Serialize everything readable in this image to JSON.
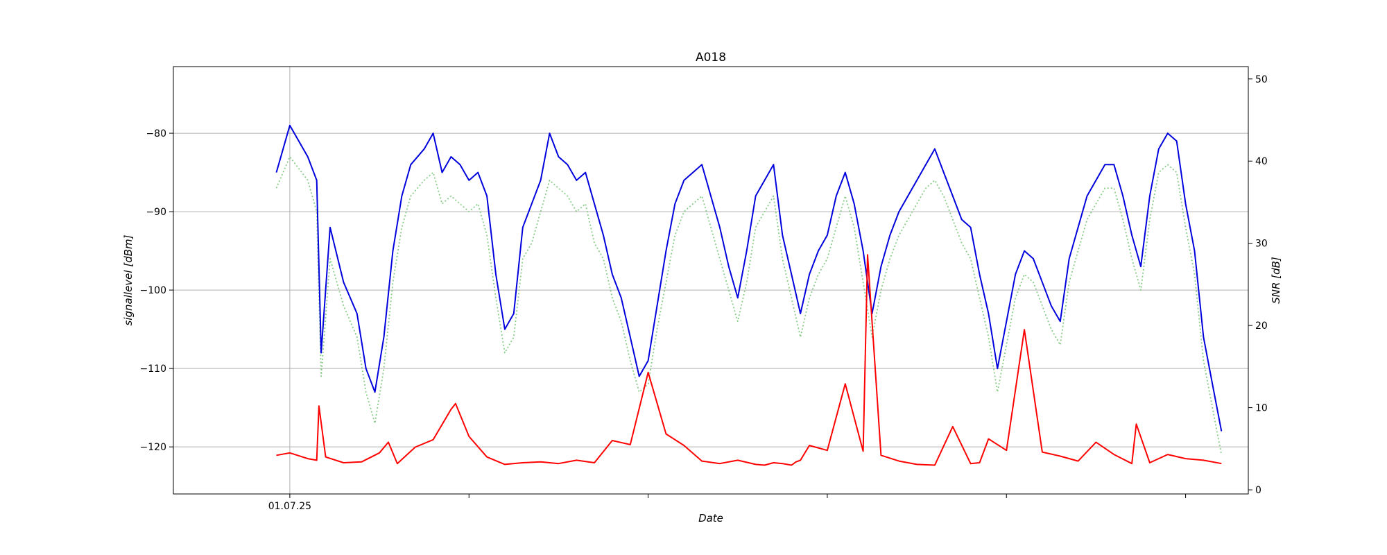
{
  "chart_data": {
    "type": "line",
    "title": "A018",
    "xlabel": "Date",
    "ylabel_left": "signallevel [dBm]",
    "ylabel_right": "SNR [dB]",
    "x_axis": {
      "type": "date",
      "ticks": [
        {
          "value": "2025-07-01",
          "label": "01.07.25"
        },
        {
          "value": "2025-07-11",
          "label": ""
        },
        {
          "value": "2025-07-21",
          "label": ""
        },
        {
          "value": "2025-07-31",
          "label": ""
        },
        {
          "value": "2025-08-10",
          "label": ""
        },
        {
          "value": "2025-08-20",
          "label": ""
        }
      ],
      "xlim": [
        "2025-06-24T12:00",
        "2025-08-23T12:00"
      ]
    },
    "y_left": {
      "ylim": [
        -126.0,
        -71.5
      ],
      "ticks": [
        -80,
        -90,
        -100,
        -110,
        -120
      ],
      "tick_labels": [
        "−80",
        "−90",
        "−100",
        "−110",
        "−120"
      ],
      "grid": true
    },
    "y_right": {
      "ylim": [
        -0.5,
        51.5
      ],
      "ticks": [
        0,
        10,
        20,
        30,
        40,
        50
      ],
      "tick_labels": [
        "0",
        "10",
        "20",
        "30",
        "40",
        "50"
      ]
    },
    "grid_x": "first tick only",
    "series": [
      {
        "axis": "left",
        "color": "#0000dd",
        "style": "solid",
        "x": [
          "2025-06-30T06:00",
          "2025-07-01T00:00",
          "2025-07-02T00:00",
          "2025-07-02T12:00",
          "2025-07-02T18:00",
          "2025-07-03T06:00",
          "2025-07-04T00:00",
          "2025-07-04T18:00",
          "2025-07-05T06:00",
          "2025-07-05T18:00",
          "2025-07-06T06:00",
          "2025-07-06T18:00",
          "2025-07-07T06:00",
          "2025-07-07T18:00",
          "2025-07-08T12:00",
          "2025-07-09T00:00",
          "2025-07-09T12:00",
          "2025-07-10T00:00",
          "2025-07-10T12:00",
          "2025-07-11T00:00",
          "2025-07-11T12:00",
          "2025-07-12T00:00",
          "2025-07-12T12:00",
          "2025-07-13T00:00",
          "2025-07-13T12:00",
          "2025-07-14T00:00",
          "2025-07-14T12:00",
          "2025-07-15T00:00",
          "2025-07-15T12:00",
          "2025-07-16T00:00",
          "2025-07-16T12:00",
          "2025-07-17T00:00",
          "2025-07-17T12:00",
          "2025-07-18T00:00",
          "2025-07-18T12:00",
          "2025-07-19T00:00",
          "2025-07-19T12:00",
          "2025-07-20T00:00",
          "2025-07-20T12:00",
          "2025-07-21T00:00",
          "2025-07-21T12:00",
          "2025-07-22T00:00",
          "2025-07-22T12:00",
          "2025-07-23T00:00",
          "2025-07-23T12:00",
          "2025-07-24T00:00",
          "2025-07-24T12:00",
          "2025-07-25T00:00",
          "2025-07-25T12:00",
          "2025-07-26T00:00",
          "2025-07-26T12:00",
          "2025-07-27T00:00",
          "2025-07-27T12:00",
          "2025-07-28T00:00",
          "2025-07-28T12:00",
          "2025-07-29T00:00",
          "2025-07-29T12:00",
          "2025-07-30T00:00",
          "2025-07-30T12:00",
          "2025-07-31T00:00",
          "2025-07-31T12:00",
          "2025-08-01T00:00",
          "2025-08-01T12:00",
          "2025-08-02T00:00",
          "2025-08-02T12:00",
          "2025-08-03T00:00",
          "2025-08-03T12:00",
          "2025-08-04T00:00",
          "2025-08-04T12:00",
          "2025-08-05T00:00",
          "2025-08-05T12:00",
          "2025-08-06T00:00",
          "2025-08-06T12:00",
          "2025-08-07T00:00",
          "2025-08-07T12:00",
          "2025-08-08T00:00",
          "2025-08-08T12:00",
          "2025-08-09T00:00",
          "2025-08-09T12:00",
          "2025-08-10T00:00",
          "2025-08-10T12:00",
          "2025-08-11T00:00",
          "2025-08-11T12:00",
          "2025-08-12T00:00",
          "2025-08-12T12:00",
          "2025-08-13T00:00",
          "2025-08-13T12:00",
          "2025-08-14T00:00",
          "2025-08-14T12:00",
          "2025-08-15T00:00",
          "2025-08-15T12:00",
          "2025-08-16T00:00",
          "2025-08-16T12:00",
          "2025-08-17T00:00",
          "2025-08-17T12:00",
          "2025-08-18T00:00",
          "2025-08-18T12:00",
          "2025-08-19T00:00",
          "2025-08-19T12:00",
          "2025-08-20T00:00",
          "2025-08-20T12:00",
          "2025-08-21T00:00",
          "2025-08-21T12:00",
          "2025-08-22T00:00"
        ],
        "y": [
          -85,
          -79,
          -83,
          -86,
          -108,
          -92,
          -99,
          -103,
          -110,
          -113,
          -106,
          -95,
          -88,
          -84,
          -82,
          -80,
          -85,
          -83,
          -84,
          -86,
          -85,
          -88,
          -98,
          -105,
          -103,
          -92,
          -89,
          -86,
          -80,
          -83,
          -84,
          -86,
          -85,
          -89,
          -93,
          -98,
          -101,
          -106,
          -111,
          -109,
          -102,
          -95,
          -89,
          -86,
          -85,
          -84,
          -88,
          -92,
          -97,
          -101,
          -95,
          -88,
          -86,
          -84,
          -93,
          -98,
          -103,
          -98,
          -95,
          -93,
          -88,
          -85,
          -89,
          -95,
          -103,
          -97,
          -93,
          -90,
          -88,
          -86,
          -84,
          -82,
          -85,
          -88,
          -91,
          -92,
          -98,
          -103,
          -110,
          -104,
          -98,
          -95,
          -96,
          -99,
          -102,
          -104,
          -96,
          -92,
          -88,
          -86,
          -84,
          -84,
          -88,
          -93,
          -97,
          -88,
          -82,
          -80,
          -81,
          -89,
          -95,
          -106,
          -112,
          -118
        ],
        "note": "sampled values read off the plotted line"
      },
      {
        "axis": "left",
        "color": "#88cc88",
        "style": "dotted",
        "x": [
          "2025-06-30T06:00",
          "2025-07-01T00:00",
          "2025-07-02T00:00",
          "2025-07-02T12:00",
          "2025-07-02T18:00",
          "2025-07-03T06:00",
          "2025-07-04T00:00",
          "2025-07-04T18:00",
          "2025-07-05T06:00",
          "2025-07-05T18:00",
          "2025-07-06T06:00",
          "2025-07-06T18:00",
          "2025-07-07T06:00",
          "2025-07-07T18:00",
          "2025-07-08T12:00",
          "2025-07-09T00:00",
          "2025-07-09T12:00",
          "2025-07-10T00:00",
          "2025-07-10T12:00",
          "2025-07-11T00:00",
          "2025-07-11T12:00",
          "2025-07-12T00:00",
          "2025-07-12T12:00",
          "2025-07-13T00:00",
          "2025-07-13T12:00",
          "2025-07-14T00:00",
          "2025-07-14T12:00",
          "2025-07-15T00:00",
          "2025-07-15T12:00",
          "2025-07-16T00:00",
          "2025-07-16T12:00",
          "2025-07-17T00:00",
          "2025-07-17T12:00",
          "2025-07-18T00:00",
          "2025-07-18T12:00",
          "2025-07-19T00:00",
          "2025-07-19T12:00",
          "2025-07-20T00:00",
          "2025-07-20T12:00",
          "2025-07-21T00:00",
          "2025-07-21T12:00",
          "2025-07-22T00:00",
          "2025-07-22T12:00",
          "2025-07-23T00:00",
          "2025-07-23T12:00",
          "2025-07-24T00:00",
          "2025-07-24T12:00",
          "2025-07-25T00:00",
          "2025-07-25T12:00",
          "2025-07-26T00:00",
          "2025-07-26T12:00",
          "2025-07-27T00:00",
          "2025-07-27T12:00",
          "2025-07-28T00:00",
          "2025-07-28T12:00",
          "2025-07-29T00:00",
          "2025-07-29T12:00",
          "2025-07-30T00:00",
          "2025-07-30T12:00",
          "2025-07-31T00:00",
          "2025-07-31T12:00",
          "2025-08-01T00:00",
          "2025-08-01T12:00",
          "2025-08-02T00:00",
          "2025-08-02T12:00",
          "2025-08-03T00:00",
          "2025-08-03T12:00",
          "2025-08-04T00:00",
          "2025-08-04T12:00",
          "2025-08-05T00:00",
          "2025-08-05T12:00",
          "2025-08-06T00:00",
          "2025-08-06T12:00",
          "2025-08-07T00:00",
          "2025-08-07T12:00",
          "2025-08-08T00:00",
          "2025-08-08T12:00",
          "2025-08-09T00:00",
          "2025-08-09T12:00",
          "2025-08-10T00:00",
          "2025-08-10T12:00",
          "2025-08-11T00:00",
          "2025-08-11T12:00",
          "2025-08-12T00:00",
          "2025-08-12T12:00",
          "2025-08-13T00:00",
          "2025-08-13T12:00",
          "2025-08-14T00:00",
          "2025-08-14T12:00",
          "2025-08-15T00:00",
          "2025-08-15T12:00",
          "2025-08-16T00:00",
          "2025-08-16T12:00",
          "2025-08-17T00:00",
          "2025-08-17T12:00",
          "2025-08-18T00:00",
          "2025-08-18T12:00",
          "2025-08-19T00:00",
          "2025-08-19T12:00",
          "2025-08-20T00:00",
          "2025-08-20T12:00",
          "2025-08-21T00:00",
          "2025-08-21T12:00",
          "2025-08-22T00:00"
        ],
        "y": [
          -87,
          -83,
          -86,
          -90,
          -111,
          -96,
          -102,
          -106,
          -113,
          -117,
          -110,
          -99,
          -92,
          -88,
          -86,
          -85,
          -89,
          -88,
          -89,
          -90,
          -89,
          -93,
          -101,
          -108,
          -106,
          -96,
          -94,
          -90,
          -86,
          -87,
          -88,
          -90,
          -89,
          -94,
          -96,
          -101,
          -104,
          -109,
          -113,
          -112,
          -105,
          -99,
          -93,
          -90,
          -89,
          -88,
          -92,
          -96,
          -100,
          -104,
          -99,
          -92,
          -90,
          -88,
          -96,
          -101,
          -106,
          -101,
          -98,
          -96,
          -92,
          -88,
          -92,
          -99,
          -106,
          -100,
          -96,
          -93,
          -91,
          -89,
          -87,
          -86,
          -88,
          -91,
          -94,
          -96,
          -101,
          -106,
          -113,
          -107,
          -101,
          -98,
          -99,
          -102,
          -105,
          -107,
          -99,
          -95,
          -91,
          -89,
          -87,
          -87,
          -91,
          -96,
          -100,
          -91,
          -85,
          -84,
          -85,
          -92,
          -98,
          -109,
          -115,
          -121
        ],
        "note": "sampled values read off the plotted line"
      },
      {
        "axis": "right",
        "color": "#ff0000",
        "style": "solid",
        "x": [
          "2025-06-30T06:00",
          "2025-07-01T00:00",
          "2025-07-02T00:00",
          "2025-07-02T12:00",
          "2025-07-02T15:00",
          "2025-07-03T00:00",
          "2025-07-04T00:00",
          "2025-07-05T00:00",
          "2025-07-06T00:00",
          "2025-07-06T12:00",
          "2025-07-07T00:00",
          "2025-07-08T00:00",
          "2025-07-09T00:00",
          "2025-07-10T00:00",
          "2025-07-10T06:00",
          "2025-07-11T00:00",
          "2025-07-12T00:00",
          "2025-07-13T00:00",
          "2025-07-14T00:00",
          "2025-07-15T00:00",
          "2025-07-16T00:00",
          "2025-07-17T00:00",
          "2025-07-18T00:00",
          "2025-07-19T00:00",
          "2025-07-20T00:00",
          "2025-07-21T00:00",
          "2025-07-22T00:00",
          "2025-07-23T00:00",
          "2025-07-24T00:00",
          "2025-07-25T00:00",
          "2025-07-26T00:00",
          "2025-07-27T00:00",
          "2025-07-27T12:00",
          "2025-07-28T00:00",
          "2025-07-28T12:00",
          "2025-07-29T00:00",
          "2025-07-29T06:00",
          "2025-07-29T12:00",
          "2025-07-30T00:00",
          "2025-07-31T00:00",
          "2025-08-01T00:00",
          "2025-08-02T00:00",
          "2025-08-02T06:00",
          "2025-08-03T00:00",
          "2025-08-04T00:00",
          "2025-08-05T00:00",
          "2025-08-06T00:00",
          "2025-08-07T00:00",
          "2025-08-08T00:00",
          "2025-08-08T12:00",
          "2025-08-09T00:00",
          "2025-08-10T00:00",
          "2025-08-11T00:00",
          "2025-08-12T00:00",
          "2025-08-13T00:00",
          "2025-08-14T00:00",
          "2025-08-15T00:00",
          "2025-08-16T00:00",
          "2025-08-17T00:00",
          "2025-08-17T06:00",
          "2025-08-18T00:00",
          "2025-08-19T00:00",
          "2025-08-20T00:00",
          "2025-08-21T00:00",
          "2025-08-22T00:00"
        ],
        "y": [
          4.2,
          4.5,
          3.8,
          3.6,
          10.2,
          4.0,
          3.3,
          3.4,
          4.5,
          5.8,
          3.2,
          5.2,
          6.1,
          9.8,
          10.5,
          6.5,
          4.0,
          3.1,
          3.3,
          3.4,
          3.2,
          3.6,
          3.3,
          6.0,
          5.5,
          14.3,
          6.8,
          5.4,
          3.5,
          3.2,
          3.6,
          3.1,
          3.0,
          3.3,
          3.2,
          3.0,
          3.4,
          3.6,
          5.4,
          4.8,
          12.9,
          4.7,
          28.6,
          4.2,
          3.5,
          3.1,
          3.0,
          7.7,
          3.2,
          3.3,
          6.2,
          4.8,
          19.5,
          4.6,
          4.1,
          3.5,
          5.8,
          4.3,
          3.2,
          8.0,
          3.3,
          4.3,
          3.8,
          3.6,
          3.2
        ],
        "note": "sampled values read off the plotted line"
      }
    ]
  }
}
